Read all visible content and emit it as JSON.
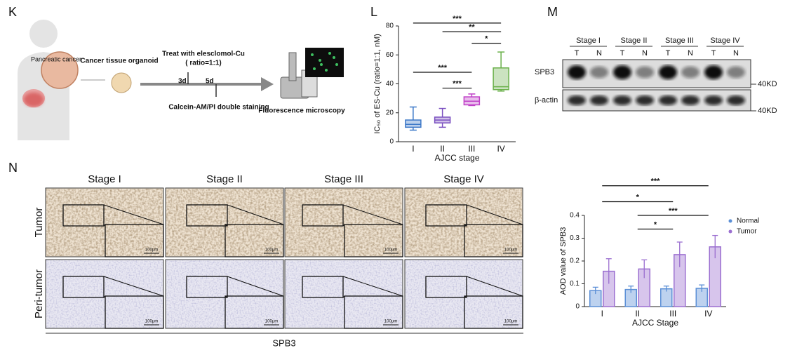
{
  "panels": {
    "k": {
      "letter": "K",
      "organ_label": "Pancreatic cancer",
      "organoid_label": "Cancer tissue organoid",
      "treatment": "Treat with elesclomol-Cu",
      "ratio": "( ratio=1:1)",
      "day1": "3d",
      "day2": "5d",
      "staining": "Calcein-AM/PI double staining",
      "readout": "Fluorescence microscopy"
    },
    "l": {
      "letter": "L"
    },
    "m": {
      "letter": "M",
      "stages": [
        "Stage  I",
        "Stage II",
        "Stage III",
        "Stage IV"
      ],
      "lanes": [
        "T",
        "N"
      ],
      "rows": [
        "SPB3",
        "β-actin"
      ],
      "marker": "40KD"
    },
    "n": {
      "letter": "N",
      "stages": [
        "Stage I",
        "Stage II",
        "Stage III",
        "Stage IV"
      ],
      "rows": [
        "Tumor",
        "Peri-tumor"
      ],
      "scale": "100μm",
      "footer": "SPB3"
    }
  },
  "chart_data": [
    {
      "type": "box",
      "ylabel": "IC₅₀ of ES-Cu (ratio=1:1, nM)",
      "xlabel": "AJCC stage",
      "categories": [
        "I",
        "II",
        "III",
        "IV"
      ],
      "colors": [
        "#3c78c8",
        "#7a4fc0",
        "#c040c8",
        "#6ab04a"
      ],
      "boxes": [
        {
          "min": 8,
          "q1": 10,
          "median": 12,
          "q3": 15,
          "max": 24
        },
        {
          "min": 10,
          "q1": 13,
          "median": 15,
          "q3": 17,
          "max": 23
        },
        {
          "min": 25,
          "q1": 25.5,
          "median": 28,
          "q3": 31,
          "max": 33
        },
        {
          "min": 35,
          "q1": 36,
          "median": 38,
          "q3": 51,
          "max": 62
        }
      ],
      "ylim": [
        0,
        80
      ],
      "yticks": [
        0,
        20,
        40,
        60,
        80
      ],
      "annotations": [
        {
          "text": "***",
          "from": 0,
          "to": 3,
          "y": 82
        },
        {
          "text": "**",
          "from": 1,
          "to": 3,
          "y": 76
        },
        {
          "text": "*",
          "from": 2,
          "to": 3,
          "y": 68
        },
        {
          "text": "***",
          "from": 0,
          "to": 2,
          "y": 48
        },
        {
          "text": "***",
          "from": 1,
          "to": 2,
          "y": 37
        }
      ]
    },
    {
      "type": "bar",
      "ylabel": "AOD value of SPB3",
      "xlabel": "AJCC Stage",
      "categories": [
        "I",
        "II",
        "III",
        "IV"
      ],
      "series": [
        {
          "name": "Normal",
          "color": "#5b8fd6",
          "values": [
            0.07,
            0.075,
            0.078,
            0.08
          ],
          "errors": [
            0.015,
            0.015,
            0.012,
            0.015
          ]
        },
        {
          "name": "Tumor",
          "color": "#9b6fd0",
          "values": [
            0.155,
            0.165,
            0.228,
            0.262
          ],
          "errors": [
            0.055,
            0.04,
            0.055,
            0.05
          ]
        }
      ],
      "ylim": [
        0,
        0.4
      ],
      "yticks": [
        0,
        0.1,
        0.2,
        0.3,
        0.4
      ],
      "annotations": [
        {
          "text": "***",
          "from": 0,
          "to": 3,
          "y": 0.53
        },
        {
          "text": "*",
          "from": 0,
          "to": 2,
          "y": 0.46
        },
        {
          "text": "***",
          "from": 1,
          "to": 3,
          "y": 0.4
        },
        {
          "text": "*",
          "from": 1,
          "to": 2,
          "y": 0.34
        }
      ]
    }
  ]
}
